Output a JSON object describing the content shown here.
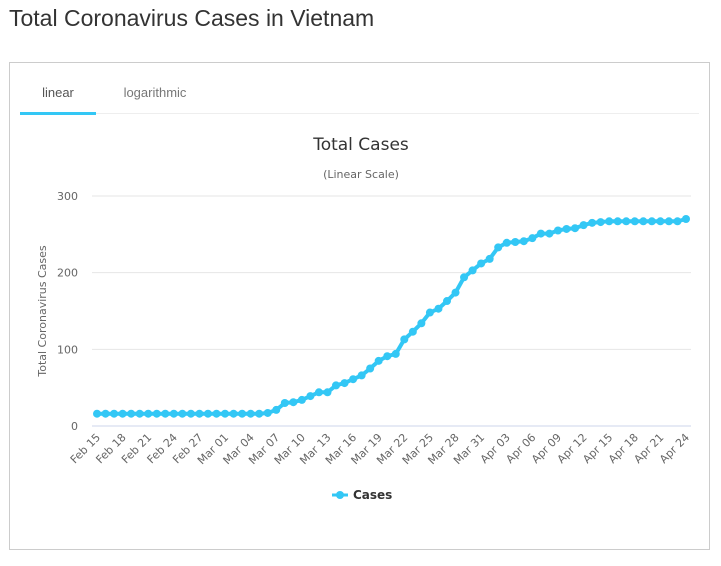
{
  "page_title": "Total Coronavirus Cases in Vietnam",
  "tabs": [
    {
      "label": "linear",
      "active": true
    },
    {
      "label": "logarithmic",
      "active": false
    }
  ],
  "colors": {
    "series": "#33c7f5",
    "accent": "#33c7f5"
  },
  "chart_data": {
    "type": "line",
    "title": "Total Cases",
    "subtitle": "(Linear Scale)",
    "xlabel": "",
    "ylabel": "Total Coronavirus Cases",
    "ylim": [
      0,
      300
    ],
    "yticks": [
      0,
      100,
      200,
      300
    ],
    "grid": true,
    "legend": "bottom-center",
    "x": [
      "Feb 15",
      "Feb 16",
      "Feb 17",
      "Feb 18",
      "Feb 19",
      "Feb 20",
      "Feb 21",
      "Feb 22",
      "Feb 23",
      "Feb 24",
      "Feb 25",
      "Feb 26",
      "Feb 27",
      "Feb 28",
      "Feb 29",
      "Mar 01",
      "Mar 02",
      "Mar 03",
      "Mar 04",
      "Mar 05",
      "Mar 06",
      "Mar 07",
      "Mar 08",
      "Mar 09",
      "Mar 10",
      "Mar 11",
      "Mar 12",
      "Mar 13",
      "Mar 14",
      "Mar 15",
      "Mar 16",
      "Mar 17",
      "Mar 18",
      "Mar 19",
      "Mar 20",
      "Mar 21",
      "Mar 22",
      "Mar 23",
      "Mar 24",
      "Mar 25",
      "Mar 26",
      "Mar 27",
      "Mar 28",
      "Mar 29",
      "Mar 30",
      "Mar 31",
      "Apr 01",
      "Apr 02",
      "Apr 03",
      "Apr 04",
      "Apr 05",
      "Apr 06",
      "Apr 07",
      "Apr 08",
      "Apr 09",
      "Apr 10",
      "Apr 11",
      "Apr 12",
      "Apr 13",
      "Apr 14",
      "Apr 15",
      "Apr 16",
      "Apr 17",
      "Apr 18",
      "Apr 19",
      "Apr 20",
      "Apr 21",
      "Apr 22",
      "Apr 23",
      "Apr 24"
    ],
    "series": [
      {
        "name": "Cases",
        "values": [
          16,
          16,
          16,
          16,
          16,
          16,
          16,
          16,
          16,
          16,
          16,
          16,
          16,
          16,
          16,
          16,
          16,
          16,
          16,
          16,
          17,
          21,
          30,
          31,
          34,
          39,
          44,
          44,
          53,
          56,
          61,
          66,
          75,
          85,
          91,
          94,
          113,
          123,
          134,
          148,
          153,
          163,
          174,
          194,
          203,
          212,
          218,
          233,
          239,
          240,
          241,
          245,
          251,
          251,
          255,
          257,
          258,
          262,
          265,
          266,
          267,
          267,
          267,
          267,
          267,
          267,
          267,
          267,
          267,
          270
        ]
      }
    ]
  }
}
